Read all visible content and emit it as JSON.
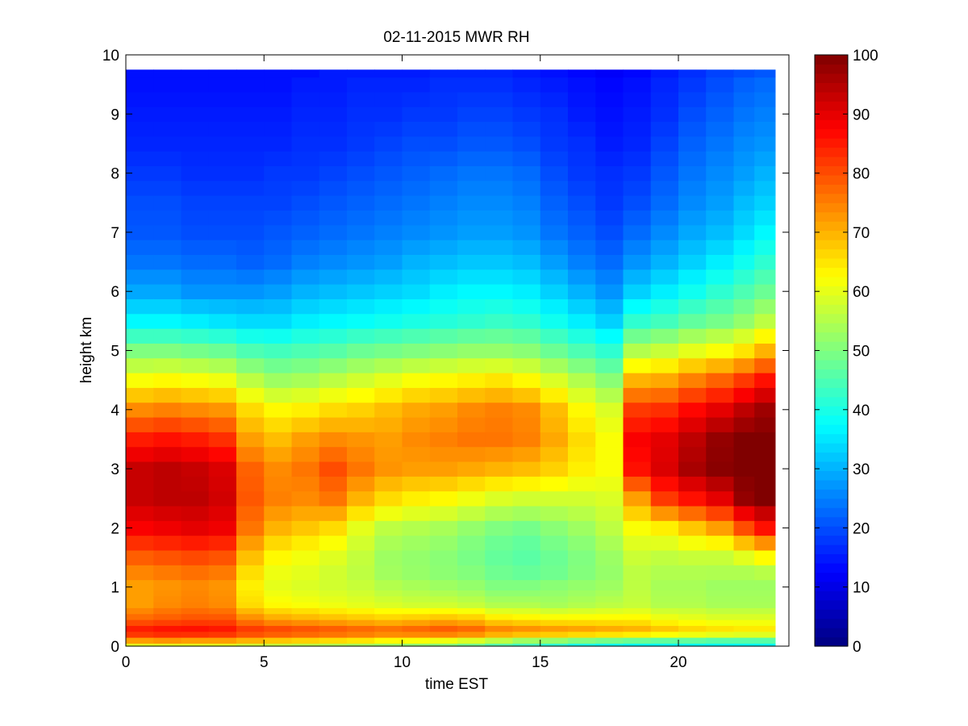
{
  "chart_data": {
    "type": "heatmap",
    "title": "02-11-2015 MWR RH",
    "xlabel": "time EST",
    "ylabel": "height km",
    "xlim": [
      0,
      24
    ],
    "ylim": [
      0,
      10
    ],
    "x_ticks": [
      "0",
      "5",
      "10",
      "15",
      "20"
    ],
    "y_ticks": [
      "0",
      "1",
      "2",
      "3",
      "4",
      "5",
      "6",
      "7",
      "8",
      "9",
      "10"
    ],
    "colormap": "jet",
    "colorbar": {
      "range": [
        0,
        100
      ],
      "ticks": [
        "0",
        "10",
        "20",
        "30",
        "40",
        "50",
        "60",
        "70",
        "80",
        "90",
        "100"
      ]
    },
    "x_centers": [
      0.5,
      1.5,
      2.5,
      3.5,
      4.5,
      5.5,
      6.5,
      7.5,
      8.5,
      9.5,
      10.5,
      11.5,
      12.5,
      13.5,
      14.5,
      15.5,
      16.5,
      17.5,
      18.5,
      19.5,
      20.5,
      21.5,
      22.5,
      23.0
    ],
    "x_max": 23.5,
    "heights_km": [
      0,
      0.1,
      0.2,
      0.3,
      0.4,
      0.5,
      0.6,
      0.7,
      0.8,
      0.9,
      1.0,
      1.25,
      1.5,
      1.75,
      2.0,
      2.25,
      2.5,
      2.75,
      3.0,
      3.25,
      3.5,
      3.75,
      4.0,
      4.25,
      4.5,
      4.75,
      5.0,
      5.25,
      5.5,
      5.75,
      6.0,
      6.25,
      6.5,
      6.75,
      7.0,
      7.25,
      7.5,
      7.75,
      8.0,
      8.25,
      8.5,
      8.75,
      9.0,
      9.25,
      9.5,
      9.75
    ],
    "profile_anchors_km": [
      0,
      0.1,
      0.25,
      0.45,
      0.7,
      1.0,
      1.3,
      1.6,
      2.0,
      2.5,
      3.0,
      3.5,
      4.0,
      4.5,
      5.0,
      5.5,
      6.0,
      6.5,
      7.0,
      7.5,
      8.0,
      8.5,
      9.0,
      9.5,
      9.75
    ],
    "rh_profiles": [
      [
        60,
        72,
        87,
        78,
        72,
        72,
        75,
        80,
        88,
        93,
        93,
        85,
        74,
        62,
        50,
        37,
        29,
        24,
        21,
        20,
        18,
        16,
        15,
        14,
        14
      ],
      [
        60,
        73,
        88,
        79,
        74,
        73,
        76,
        81,
        89,
        94,
        94,
        86,
        75,
        63,
        50,
        37,
        29,
        24,
        21,
        20,
        18,
        16,
        15,
        14,
        14
      ],
      [
        60,
        72,
        88,
        80,
        75,
        74,
        77,
        82,
        90,
        94,
        93,
        85,
        74,
        62,
        49,
        36,
        27,
        23,
        20,
        19,
        17,
        16,
        15,
        14,
        14
      ],
      [
        60,
        72,
        87,
        80,
        74,
        73,
        76,
        81,
        89,
        92,
        91,
        83,
        73,
        61,
        48,
        35,
        27,
        23,
        20,
        19,
        17,
        16,
        15,
        14,
        14
      ],
      [
        58,
        70,
        84,
        75,
        66,
        64,
        66,
        70,
        76,
        79,
        78,
        72,
        66,
        56,
        45,
        34,
        27,
        22,
        20,
        19,
        17,
        16,
        15,
        14,
        14
      ],
      [
        57,
        68,
        83,
        72,
        63,
        60,
        61,
        64,
        70,
        75,
        74,
        69,
        63,
        53,
        44,
        34,
        28,
        23,
        21,
        19,
        18,
        16,
        15,
        14,
        14
      ],
      [
        56,
        67,
        82,
        71,
        62,
        59,
        60,
        62,
        68,
        74,
        76,
        72,
        64,
        54,
        45,
        36,
        30,
        25,
        22,
        20,
        18,
        17,
        16,
        15,
        14
      ],
      [
        55,
        66,
        81,
        70,
        61,
        58,
        58,
        60,
        66,
        76,
        80,
        74,
        66,
        56,
        46,
        37,
        31,
        26,
        23,
        21,
        19,
        17,
        16,
        15,
        15
      ],
      [
        54,
        65,
        80,
        69,
        60,
        57,
        56,
        57,
        60,
        70,
        76,
        73,
        67,
        58,
        48,
        38,
        32,
        27,
        24,
        22,
        20,
        18,
        17,
        16,
        15
      ],
      [
        53,
        63,
        79,
        68,
        59,
        55,
        53,
        53,
        56,
        66,
        73,
        72,
        69,
        60,
        49,
        39,
        33,
        28,
        25,
        23,
        21,
        19,
        17,
        16,
        15
      ],
      [
        52,
        62,
        80,
        69,
        58,
        54,
        52,
        52,
        55,
        64,
        72,
        74,
        71,
        62,
        50,
        40,
        34,
        30,
        26,
        24,
        22,
        20,
        18,
        16,
        15
      ],
      [
        51,
        61,
        81,
        70,
        58,
        53,
        51,
        51,
        54,
        63,
        72,
        75,
        72,
        63,
        51,
        41,
        36,
        31,
        27,
        25,
        23,
        20,
        18,
        17,
        16
      ],
      [
        49,
        59,
        80,
        69,
        57,
        52,
        50,
        49,
        52,
        61,
        71,
        76,
        74,
        64,
        52,
        42,
        37,
        32,
        28,
        26,
        24,
        21,
        19,
        17,
        16
      ],
      [
        46,
        56,
        77,
        66,
        55,
        50,
        48,
        47,
        50,
        59,
        70,
        76,
        75,
        65,
        52,
        43,
        37,
        32,
        28,
        26,
        24,
        21,
        19,
        17,
        16
      ],
      [
        44,
        53,
        76,
        65,
        55,
        50,
        47,
        46,
        49,
        58,
        69,
        75,
        74,
        63,
        51,
        42,
        36,
        31,
        27,
        25,
        23,
        20,
        18,
        16,
        15
      ],
      [
        42,
        52,
        75,
        64,
        54,
        51,
        48,
        48,
        51,
        58,
        67,
        71,
        69,
        59,
        48,
        39,
        33,
        28,
        24,
        22,
        20,
        18,
        17,
        15,
        14
      ],
      [
        40,
        50,
        74,
        64,
        55,
        52,
        50,
        50,
        53,
        58,
        64,
        66,
        63,
        55,
        45,
        36,
        30,
        25,
        22,
        20,
        18,
        17,
        15,
        14,
        13
      ],
      [
        39,
        49,
        73,
        64,
        56,
        53,
        52,
        53,
        56,
        59,
        62,
        62,
        59,
        51,
        42,
        33,
        27,
        23,
        20,
        18,
        17,
        15,
        14,
        13,
        12
      ],
      [
        38,
        48,
        72,
        64,
        57,
        56,
        56,
        58,
        62,
        72,
        86,
        88,
        82,
        70,
        55,
        42,
        33,
        27,
        23,
        20,
        18,
        16,
        15,
        14,
        13
      ],
      [
        38,
        47,
        70,
        62,
        55,
        54,
        55,
        57,
        64,
        82,
        91,
        90,
        83,
        71,
        57,
        44,
        36,
        30,
        26,
        23,
        21,
        19,
        17,
        16,
        15
      ],
      [
        38,
        47,
        68,
        61,
        55,
        54,
        55,
        58,
        68,
        86,
        96,
        94,
        87,
        75,
        60,
        47,
        39,
        33,
        29,
        26,
        24,
        22,
        20,
        18,
        17
      ],
      [
        38,
        46,
        67,
        60,
        54,
        53,
        55,
        58,
        72,
        90,
        99,
        98,
        90,
        78,
        62,
        49,
        42,
        36,
        31,
        28,
        26,
        24,
        22,
        20,
        19
      ],
      [
        38,
        46,
        66,
        60,
        54,
        53,
        55,
        62,
        80,
        98,
        100,
        100,
        94,
        82,
        65,
        52,
        45,
        39,
        34,
        31,
        28,
        26,
        24,
        22,
        20
      ],
      [
        38,
        46,
        66,
        60,
        54,
        53,
        56,
        66,
        86,
        100,
        100,
        100,
        97,
        86,
        70,
        56,
        48,
        42,
        37,
        33,
        30,
        27,
        25,
        23,
        21
      ]
    ]
  }
}
